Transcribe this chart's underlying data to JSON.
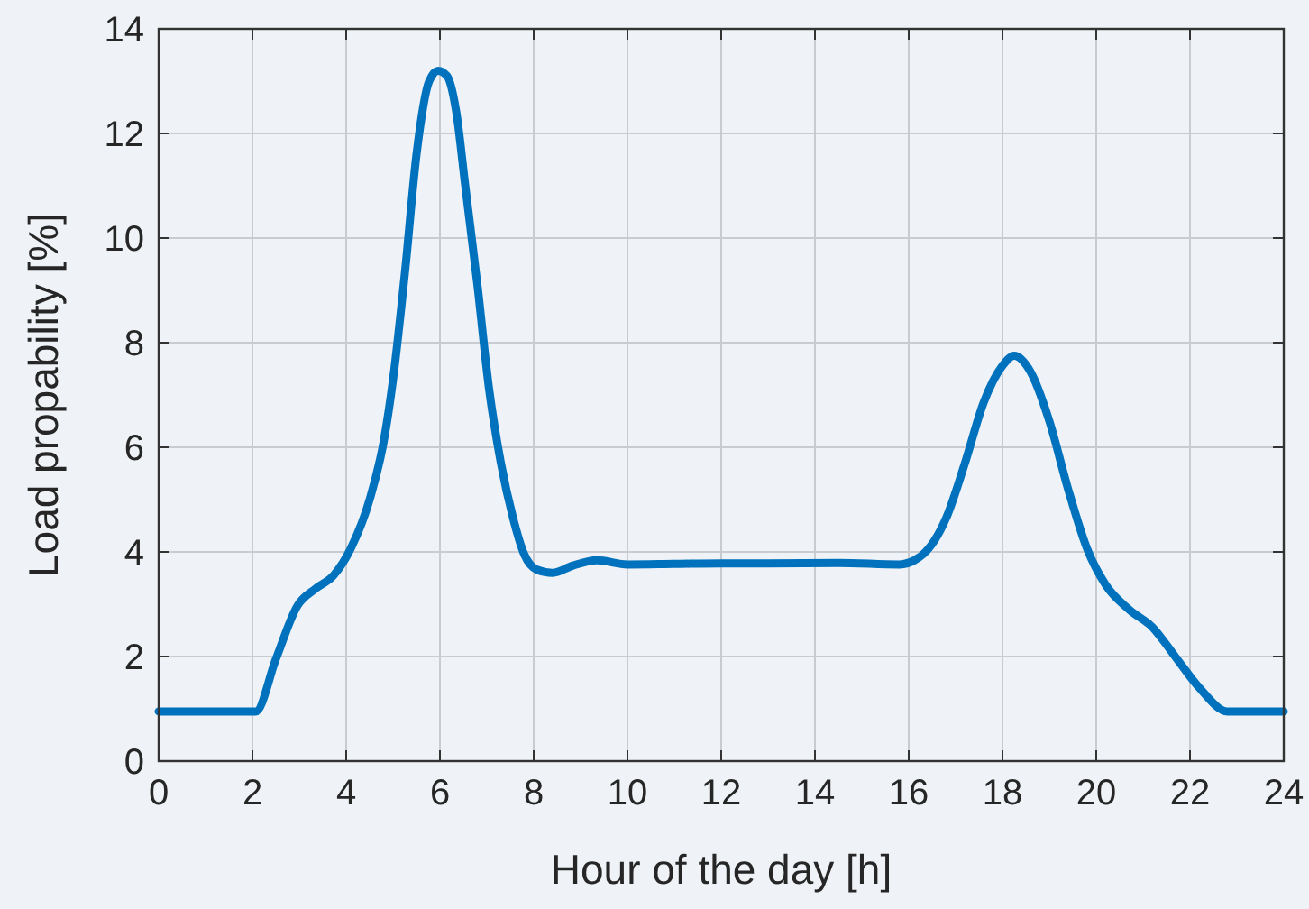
{
  "chart_data": {
    "type": "line",
    "xlabel": "Hour of the day [h]",
    "ylabel": "Load propability [%]",
    "xlim": [
      0,
      24
    ],
    "xticks": [
      0,
      2,
      4,
      6,
      8,
      10,
      12,
      14,
      16,
      18,
      20,
      22,
      24
    ],
    "ylim": [
      0,
      14
    ],
    "yticks": [
      0,
      2,
      4,
      6,
      8,
      10,
      12,
      14
    ],
    "grid": true,
    "marker": "none",
    "line_style": "solid",
    "series": [
      {
        "color": "#0072bd",
        "x": [
          0,
          1,
          2.07,
          2.5,
          2.96,
          3.35,
          3.73,
          4.1,
          4.5,
          4.81,
          5,
          5.26,
          5.5,
          5.77,
          5.96,
          6.15,
          6.35,
          6.54,
          6.8,
          7.05,
          7.3,
          7.56,
          7.8,
          8.07,
          8.4,
          8.84,
          9.35,
          10,
          11,
          12,
          13,
          14.5,
          15.8,
          16.3,
          16.8,
          17.2,
          17.6,
          18,
          18.25,
          18.6,
          19,
          19.4,
          19.8,
          20.2,
          20.7,
          21.2,
          21.7,
          22.2,
          22.8,
          23.4,
          24
        ],
        "values": [
          0.95,
          0.95,
          0.95,
          1.95,
          2.97,
          3.3,
          3.55,
          4.07,
          5.0,
          6.16,
          7.3,
          9.4,
          11.6,
          13.0,
          13.2,
          13.1,
          12.4,
          11.0,
          9.1,
          7.1,
          5.7,
          4.65,
          3.95,
          3.66,
          3.6,
          3.74,
          3.84,
          3.76,
          3.77,
          3.78,
          3.78,
          3.79,
          3.76,
          3.95,
          4.65,
          5.7,
          6.86,
          7.56,
          7.75,
          7.44,
          6.5,
          5.2,
          4.07,
          3.37,
          2.9,
          2.56,
          1.98,
          1.4,
          0.95,
          0.95,
          0.95
        ]
      }
    ]
  }
}
